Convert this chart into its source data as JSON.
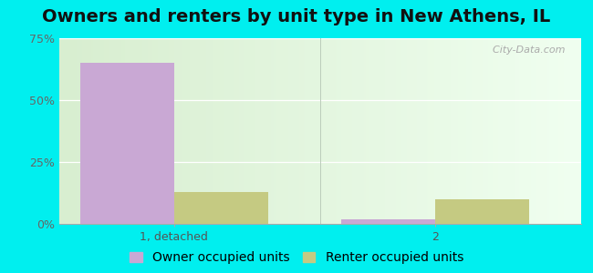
{
  "title": "Owners and renters by unit type in New Athens, IL",
  "categories": [
    "1, detached",
    "2"
  ],
  "owner_values": [
    65.0,
    2.0
  ],
  "renter_values": [
    13.0,
    10.0
  ],
  "owner_color": "#c9a8d4",
  "renter_color": "#c5ca82",
  "ylim": [
    0,
    75
  ],
  "yticks": [
    0,
    25,
    50,
    75
  ],
  "yticklabels": [
    "0%",
    "25%",
    "50%",
    "75%"
  ],
  "title_fontsize": 14,
  "tick_fontsize": 9,
  "legend_fontsize": 10,
  "bar_width": 0.18,
  "outer_bg": "#00EFEF",
  "watermark": "  City-Data.com",
  "watermark_icon": "◔",
  "legend_owner": "Owner occupied units",
  "legend_renter": "Renter occupied units"
}
